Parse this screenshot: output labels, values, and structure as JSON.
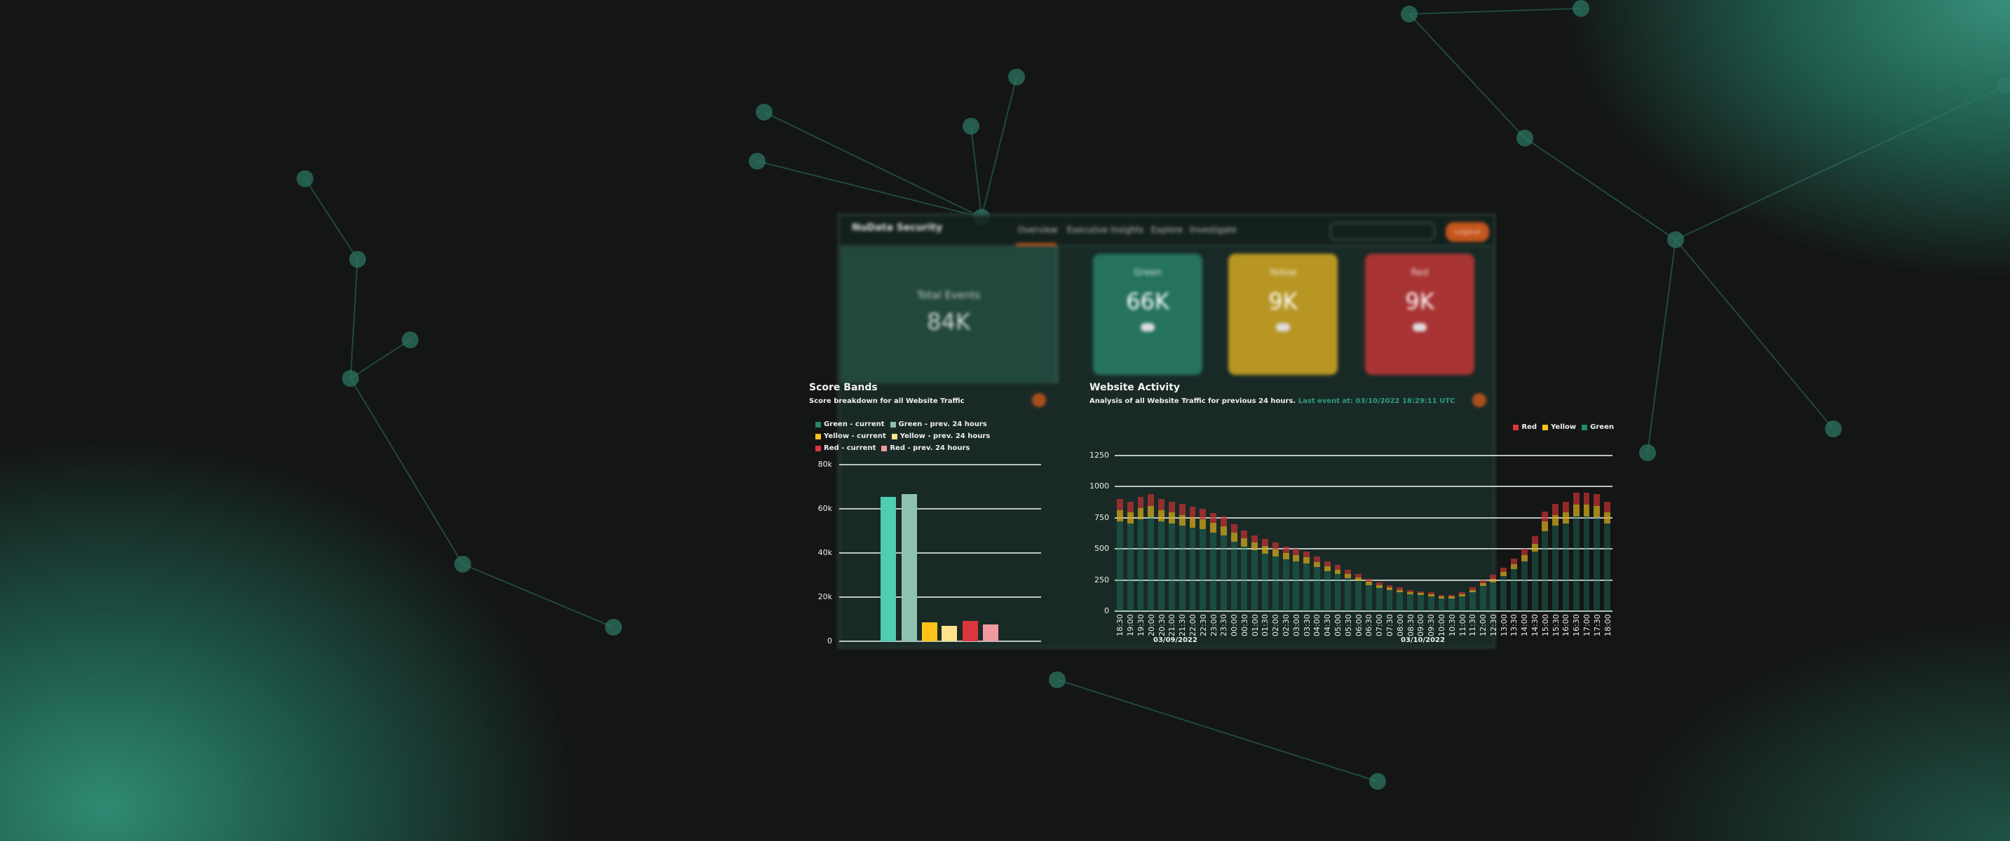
{
  "dashboard": {
    "brand": "NuData Security",
    "nav": [
      "Overview",
      "Executive Insights",
      "Explore",
      "Investigate"
    ],
    "logout_label": "Logout",
    "total": {
      "label": "Total Events",
      "value": "84K"
    },
    "cards": [
      {
        "label": "Green",
        "value": "66K",
        "color": "#25725f"
      },
      {
        "label": "Yellow",
        "value": "9K",
        "color": "#b89624"
      },
      {
        "label": "Red",
        "value": "9K",
        "color": "#a83333"
      }
    ]
  },
  "chart_data": [
    {
      "type": "bar",
      "title": "Score Bands",
      "subtitle": "Score breakdown for all Website Traffic",
      "legend": [
        {
          "name": "Green - current",
          "color": "#1f8a6f"
        },
        {
          "name": "Green - prev. 24 hours",
          "color": "#8fbfb2"
        },
        {
          "name": "Yellow - current",
          "color": "#ffc21a"
        },
        {
          "name": "Yellow - prev. 24 hours",
          "color": "#ffe28a"
        },
        {
          "name": "Red - current",
          "color": "#d9363e"
        },
        {
          "name": "Red - prev. 24 hours",
          "color": "#f09aa0"
        }
      ],
      "bar_colors": [
        "#4ecdb1",
        "#8fc1b3",
        "#ffc21a",
        "#ffe28a",
        "#d9363e",
        "#f09aa0"
      ],
      "values": [
        65500,
        66800,
        8500,
        7000,
        9200,
        7600
      ],
      "yticks": [
        "0",
        "20k",
        "40k",
        "60k",
        "80k"
      ],
      "ylim": [
        0,
        80000
      ],
      "grid": true,
      "legend_position": "top"
    },
    {
      "type": "bar",
      "stacked": true,
      "title": "Website Activity",
      "subtitle": "Analysis of all Website Traffic for previous 24 hours.",
      "last_event": "Last event at: 03/10/2022 18:29:11 UTC",
      "legend": [
        {
          "name": "Red",
          "color": "#d9363e"
        },
        {
          "name": "Yellow",
          "color": "#ffc21a"
        },
        {
          "name": "Green",
          "color": "#1f8a6f"
        }
      ],
      "legend_position": "top-right",
      "yticks": [
        "0",
        "250",
        "500",
        "750",
        "1000",
        "1250"
      ],
      "ylim": [
        0,
        1250
      ],
      "grid": true,
      "x": [
        "18:30",
        "19:00",
        "19:30",
        "20:00",
        "20:30",
        "21:00",
        "21:30",
        "22:00",
        "22:30",
        "23:00",
        "23:30",
        "00:00",
        "00:30",
        "01:00",
        "01:30",
        "02:00",
        "02:30",
        "03:00",
        "03:30",
        "04:00",
        "04:30",
        "05:00",
        "05:30",
        "06:00",
        "06:30",
        "07:00",
        "07:30",
        "08:00",
        "08:30",
        "09:00",
        "09:30",
        "10:00",
        "10:30",
        "11:00",
        "11:30",
        "12:00",
        "12:30",
        "13:00",
        "13:30",
        "14:00",
        "14:30",
        "15:00",
        "15:30",
        "16:00",
        "16:30",
        "17:00",
        "17:30",
        "18:00"
      ],
      "dates": [
        "03/09/2022",
        "03/10/2022"
      ],
      "series": [
        {
          "name": "Green",
          "values": [
            720,
            704,
            736,
            752,
            720,
            704,
            688,
            672,
            656,
            632,
            608,
            560,
            520,
            488,
            464,
            440,
            416,
            400,
            384,
            352,
            320,
            296,
            264,
            240,
            208,
            184,
            168,
            152,
            136,
            128,
            120,
            104,
            104,
            120,
            152,
            200,
            232,
            280,
            336,
            400,
            480,
            640,
            688,
            704,
            760,
            760,
            752,
            704
          ]
        },
        {
          "name": "Yellow",
          "values": [
            90,
            88,
            92,
            94,
            90,
            88,
            86,
            84,
            82,
            79,
            76,
            70,
            65,
            61,
            58,
            55,
            52,
            50,
            48,
            44,
            40,
            37,
            33,
            30,
            26,
            23,
            21,
            19,
            17,
            16,
            15,
            13,
            13,
            15,
            19,
            25,
            29,
            35,
            42,
            50,
            60,
            80,
            86,
            88,
            95,
            95,
            94,
            88
          ]
        },
        {
          "name": "Red",
          "values": [
            90,
            88,
            92,
            94,
            90,
            88,
            86,
            84,
            82,
            79,
            76,
            70,
            65,
            61,
            58,
            55,
            52,
            50,
            48,
            44,
            40,
            37,
            33,
            30,
            26,
            23,
            21,
            19,
            17,
            16,
            15,
            13,
            13,
            15,
            19,
            25,
            29,
            35,
            42,
            50,
            60,
            80,
            86,
            88,
            95,
            95,
            94,
            88
          ]
        }
      ]
    }
  ]
}
